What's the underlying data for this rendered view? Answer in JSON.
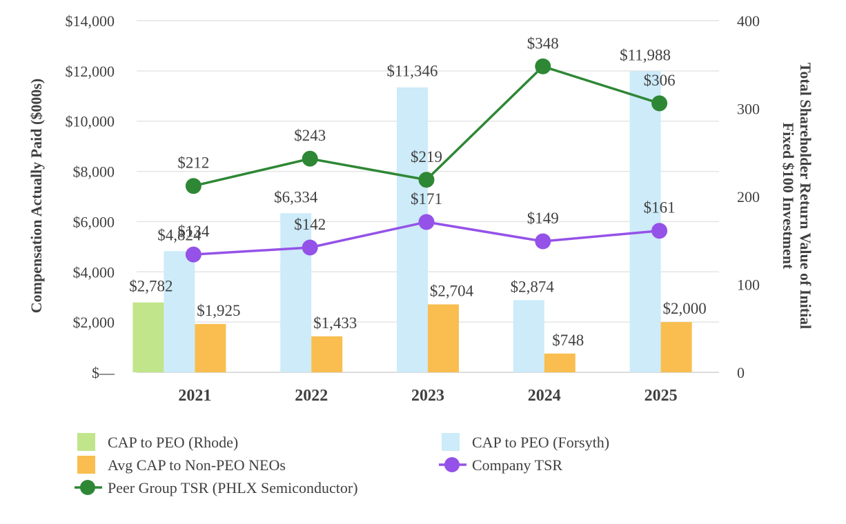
{
  "chart_data": {
    "type": "bar",
    "title": "",
    "categories": [
      "2021",
      "2022",
      "2023",
      "2024",
      "2025"
    ],
    "ylabel": "Compensation Actually Paid ($000s)",
    "ylabel_right": [
      "Total Shareholder Return Value of Initial",
      "Fixed $100 Investment"
    ],
    "ylim": [
      0,
      14000
    ],
    "ylim_right": [
      0,
      400
    ],
    "yticks": [
      "$—",
      "$2,000",
      "$4,000",
      "$6,000",
      "$8,000",
      "$10,000",
      "$12,000",
      "$14,000"
    ],
    "yticks_right": [
      "0",
      "100",
      "200",
      "300",
      "400"
    ],
    "grid": true,
    "legend_position": "bottom",
    "series": [
      {
        "name": "CAP to PEO (Rhode)",
        "kind": "bar",
        "color": "#C1E58A",
        "values": [
          2782,
          null,
          null,
          null,
          null
        ],
        "labels": [
          "$2,782",
          "",
          "",
          "",
          ""
        ]
      },
      {
        "name": "CAP to PEO (Forsyth)",
        "kind": "bar",
        "color": "#CDEBF9",
        "values": [
          4824,
          6334,
          11346,
          2874,
          11988
        ],
        "labels": [
          "$4,824",
          "$6,334",
          "$11,346",
          "$2,874",
          "$11,988"
        ]
      },
      {
        "name": "Avg CAP to Non-PEO NEOs",
        "kind": "bar",
        "color": "#F9BE4F",
        "values": [
          1925,
          1433,
          2704,
          748,
          2000
        ],
        "labels": [
          "$1,925",
          "$1,433",
          "$2,704",
          "$748",
          "$2,000"
        ]
      },
      {
        "name": "Company TSR",
        "kind": "line",
        "axis": "right",
        "color": "#9452E8",
        "values": [
          134,
          142,
          171,
          149,
          161
        ],
        "labels": [
          "$134",
          "$142",
          "$171",
          "$149",
          "$161"
        ]
      },
      {
        "name": "Peer Group TSR (PHLX Semiconductor)",
        "kind": "line",
        "axis": "right",
        "color": "#2E8735",
        "values": [
          212,
          243,
          219,
          348,
          306
        ],
        "labels": [
          "$212",
          "$243",
          "$219",
          "$348",
          "$306"
        ]
      }
    ]
  }
}
